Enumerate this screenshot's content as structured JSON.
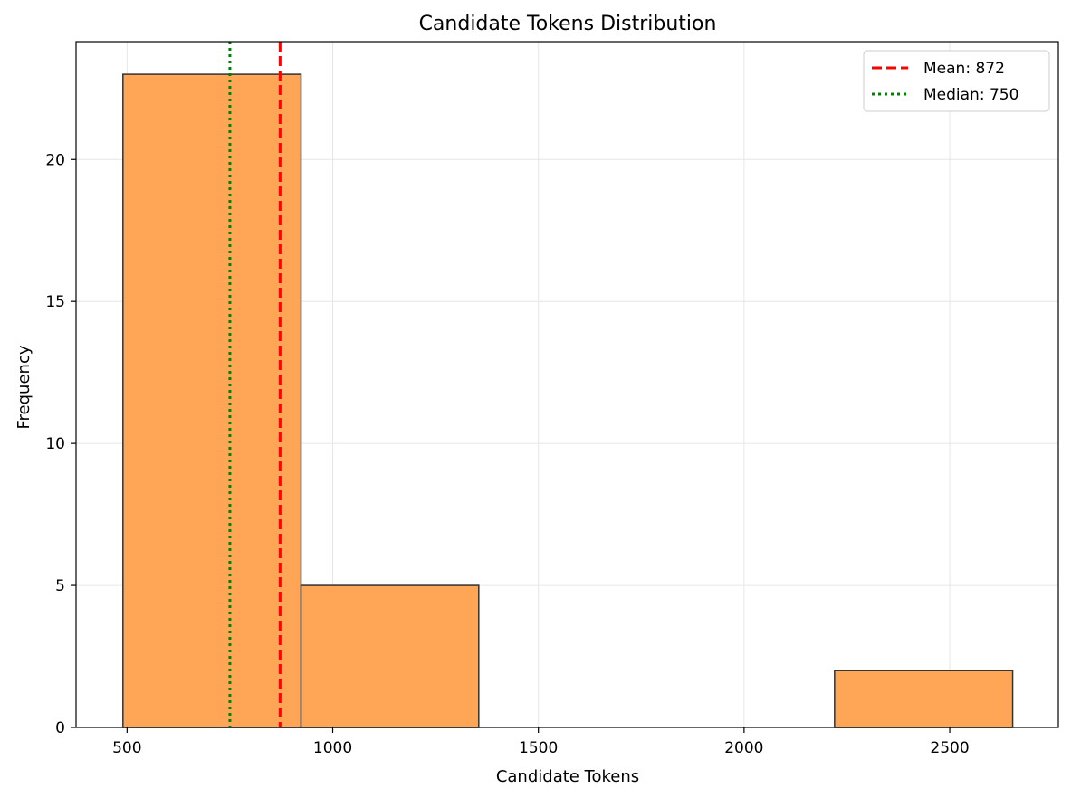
{
  "chart_data": {
    "type": "bar",
    "title": "Candidate Tokens Distribution",
    "xlabel": "Candidate Tokens",
    "ylabel": "Frequency",
    "xlim": [
      376,
      2764
    ],
    "ylim": [
      0,
      24.15
    ],
    "x_ticks": [
      500,
      1000,
      1500,
      2000,
      2500
    ],
    "y_ticks": [
      0,
      5,
      10,
      15,
      20
    ],
    "grid": true,
    "legend_position": "top-right",
    "bins": [
      {
        "x0": 490,
        "x1": 923,
        "count": 23
      },
      {
        "x0": 923,
        "x1": 1355,
        "count": 5
      },
      {
        "x0": 1355,
        "x1": 1788,
        "count": 0
      },
      {
        "x0": 1788,
        "x1": 2220,
        "count": 0
      },
      {
        "x0": 2220,
        "x1": 2653,
        "count": 2
      }
    ],
    "bar_color": "#ffa556",
    "bar_edge_color": "#333333",
    "reference_lines": [
      {
        "name": "Mean: 872",
        "value": 872,
        "color": "#ff0000",
        "style": "dashed"
      },
      {
        "name": "Median: 750",
        "value": 750,
        "color": "#008000",
        "style": "dotted"
      }
    ]
  }
}
